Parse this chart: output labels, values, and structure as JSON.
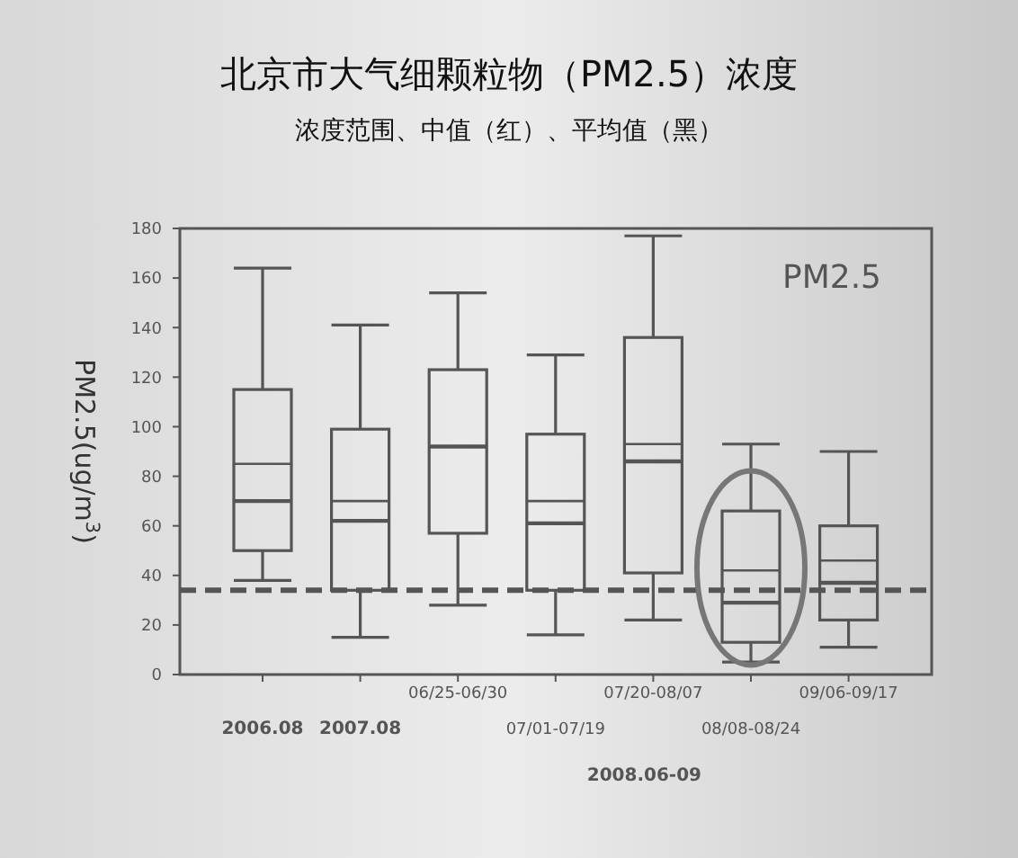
{
  "chart_data": {
    "type": "box",
    "title": "北京市大气细颗粒物（PM2.5）浓度",
    "subtitle": "浓度范围、中值（红）、平均值（黑）",
    "ylabel": "PM2.5(ug/m$^{3}$)",
    "categories": [
      "2006.08",
      "2007.08",
      "06/25-06/30",
      "07/01-07/19",
      "07/20-08/07",
      "08/08-08/24",
      "09/06-09/17"
    ],
    "boxes": [
      {
        "low": 38,
        "q1": 50,
        "median": 70,
        "q3": 115,
        "high": 164,
        "mean": 85
      },
      {
        "low": 15,
        "q1": 34,
        "median": 62,
        "q3": 99,
        "high": 141,
        "mean": 70
      },
      {
        "low": 28,
        "q1": 57,
        "median": 92,
        "q3": 123,
        "high": 154,
        "mean": 92
      },
      {
        "low": 16,
        "q1": 34,
        "median": 61,
        "q3": 97,
        "high": 129,
        "mean": 70
      },
      {
        "low": 22,
        "q1": 41,
        "median": 86,
        "q3": 136,
        "high": 177,
        "mean": 93
      },
      {
        "low": 5,
        "q1": 13,
        "median": 29,
        "q3": 66,
        "high": 93,
        "mean": 42
      },
      {
        "low": 11,
        "q1": 22,
        "median": 37,
        "q3": 60,
        "high": 90,
        "mean": 46
      }
    ],
    "color": "#555555",
    "ylim": [
      0,
      180
    ],
    "yticks": [
      0,
      20,
      40,
      60,
      80,
      100,
      120,
      140,
      160,
      180
    ],
    "grid": false,
    "ref_lines": [
      {
        "axis": "y",
        "value": 34,
        "color": "#555555",
        "line_style": "dashed"
      }
    ],
    "annotations": [
      "PM2.5",
      "2008.06-09"
    ]
  }
}
